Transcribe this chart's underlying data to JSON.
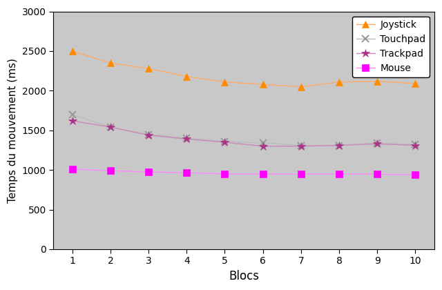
{
  "x": [
    1,
    2,
    3,
    4,
    5,
    6,
    7,
    8,
    9,
    10
  ],
  "joystick": [
    2500,
    2350,
    2280,
    2180,
    2110,
    2080,
    2050,
    2110,
    2120,
    2090
  ],
  "touchpad": [
    1700,
    1540,
    1450,
    1400,
    1360,
    1340,
    1310,
    1310,
    1340,
    1320
  ],
  "trackpad": [
    1620,
    1540,
    1440,
    1390,
    1350,
    1300,
    1300,
    1310,
    1330,
    1310
  ],
  "mouse": [
    1010,
    990,
    975,
    965,
    950,
    950,
    945,
    950,
    945,
    940
  ],
  "joystick_marker_color": "#FF8C00",
  "touchpad_marker_color": "#999999",
  "trackpad_marker_color": "#AA3388",
  "mouse_marker_color": "#FF00FF",
  "joystick_line_color": "#FFAA66",
  "touchpad_line_color": "#BBBBBB",
  "trackpad_line_color": "#CC88BB",
  "mouse_line_color": "#FF88FF",
  "xlabel": "Blocs",
  "ylabel": "Temps du mouvement (ms)",
  "ylim": [
    0,
    3000
  ],
  "yticks": [
    0,
    500,
    1000,
    1500,
    2000,
    2500,
    3000
  ],
  "plot_bg_color": "#C8C8C8",
  "fig_bg_color": "#FFFFFF",
  "legend_entries": [
    "Joystick",
    "Touchpad",
    "Trackpad",
    "Mouse"
  ]
}
